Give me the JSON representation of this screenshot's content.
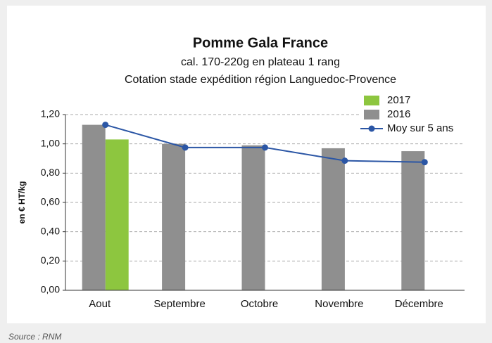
{
  "chart_data": {
    "type": "bar",
    "title": "Pomme Gala France",
    "subtitle": "cal. 170-220g en plateau 1 rang",
    "subtitle2": "Cotation stade expédition région Languedoc-Provence",
    "ylabel": "en € HT/kg",
    "source": "Source : RNM",
    "categories": [
      "Aout",
      "Septembre",
      "Octobre",
      "Novembre",
      "Décembre"
    ],
    "series": [
      {
        "name": "2017",
        "color": "#8dc63f",
        "type": "bar",
        "values": [
          1.03,
          null,
          null,
          null,
          null
        ]
      },
      {
        "name": "2016",
        "color": "#8f8f8f",
        "type": "bar",
        "values": [
          1.13,
          1.0,
          0.99,
          0.97,
          0.95
        ]
      },
      {
        "name": "Moy sur 5 ans",
        "color": "#2b56a5",
        "type": "line",
        "values": [
          1.13,
          0.975,
          0.975,
          0.885,
          0.875
        ]
      }
    ],
    "ylim": [
      0,
      1.2
    ],
    "yticks": [
      {
        "value": 0,
        "label": "0,00"
      },
      {
        "value": 0.2,
        "label": "0,20"
      },
      {
        "value": 0.4,
        "label": "0,40"
      },
      {
        "value": 0.6,
        "label": "0,60"
      },
      {
        "value": 0.8,
        "label": "0,80"
      },
      {
        "value": 1.0,
        "label": "1,00"
      },
      {
        "value": 1.2,
        "label": "1,20"
      }
    ],
    "grid": true,
    "legend": "upper right"
  }
}
